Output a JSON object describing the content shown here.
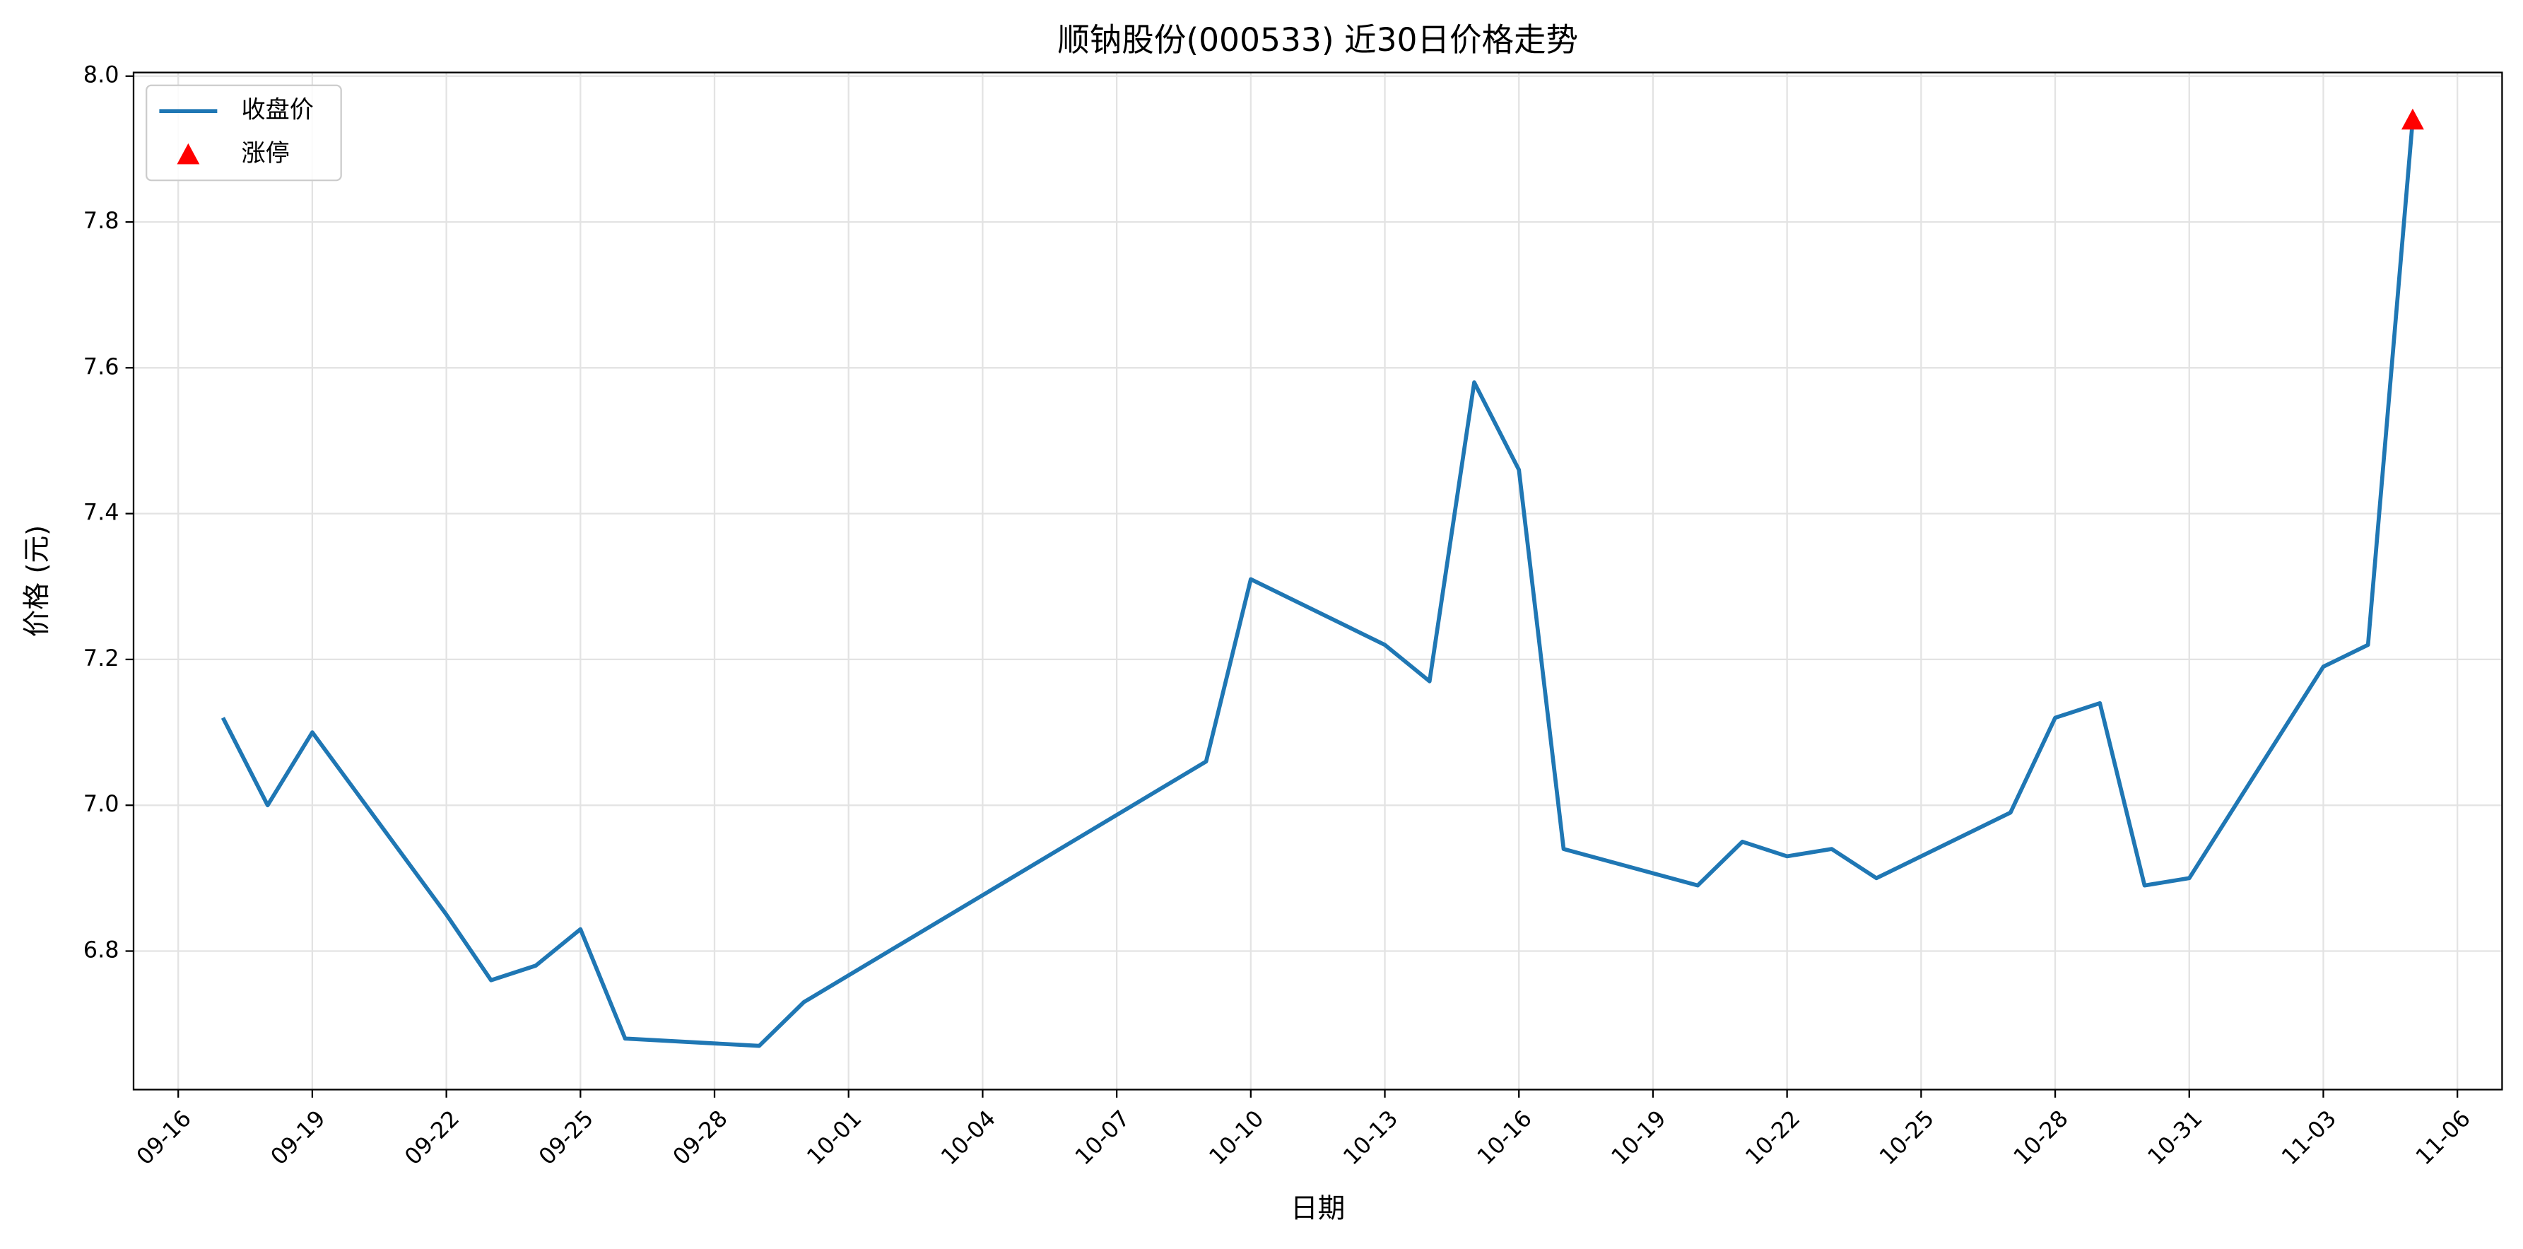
{
  "chart_data": {
    "type": "line",
    "title": "顺钠股份(000533) 近30日价格走势",
    "x_label": "日期",
    "y_label": "价格 (元)",
    "x": [
      "09-17",
      "09-18",
      "09-19",
      "09-22",
      "09-23",
      "09-24",
      "09-25",
      "09-26",
      "09-29",
      "09-30",
      "10-09",
      "10-10",
      "10-13",
      "10-14",
      "10-15",
      "10-16",
      "10-17",
      "10-20",
      "10-21",
      "10-22",
      "10-23",
      "10-24",
      "10-27",
      "10-28",
      "10-29",
      "10-30",
      "10-31",
      "11-03",
      "11-04",
      "11-05"
    ],
    "series": [
      {
        "name": "收盘价",
        "color": "#1f77b4",
        "values": [
          7.12,
          7.0,
          7.1,
          6.85,
          6.76,
          6.78,
          6.83,
          6.68,
          6.67,
          6.73,
          7.06,
          7.31,
          7.22,
          7.17,
          7.58,
          7.46,
          6.94,
          6.89,
          6.95,
          6.93,
          6.94,
          6.9,
          6.99,
          7.12,
          7.14,
          6.89,
          6.9,
          7.19,
          7.22,
          7.94
        ]
      },
      {
        "name": "涨停",
        "type": "scatter",
        "marker": "triangle",
        "color": "#ff0000",
        "x": [
          "11-05"
        ],
        "values": [
          7.94
        ]
      }
    ],
    "xlim": [
      "09-15",
      "11-07"
    ],
    "xticks": [
      "09-16",
      "09-19",
      "09-22",
      "09-25",
      "09-28",
      "10-01",
      "10-04",
      "10-07",
      "10-10",
      "10-13",
      "10-16",
      "10-19",
      "10-22",
      "10-25",
      "10-28",
      "10-31",
      "11-03",
      "11-06"
    ],
    "ylim": [
      6.61,
      8.005
    ],
    "yticks": [
      6.8,
      {
        "value": 7,
        "label": "7.0"
      },
      7.2,
      7.4,
      7.6,
      7.8,
      {
        "value": 8,
        "label": "8.0"
      }
    ],
    "grid": true,
    "legend": "upper left"
  }
}
